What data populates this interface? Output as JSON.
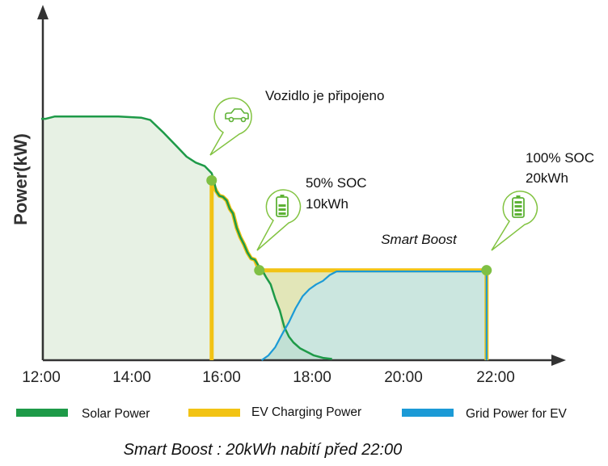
{
  "chart_data": {
    "type": "area",
    "ylabel": "Power(kW)",
    "x_ticks": [
      "12:00",
      "14:00",
      "16:00",
      "18:00",
      "20:00",
      "22:00"
    ],
    "x_range_hours": [
      12,
      23.3
    ],
    "y_range_kw": [
      0,
      12
    ],
    "grid": false,
    "legend_position": "bottom",
    "series": [
      {
        "name": "Solar Power",
        "color": "#1e9a48",
        "x_hours": [
          12,
          12.1,
          12.3,
          12.7,
          13.2,
          13.7,
          14.2,
          14.4,
          14.7,
          15.0,
          15.2,
          15.4,
          15.6,
          15.75,
          15.8,
          15.85,
          15.92,
          16.0,
          16.08,
          16.15,
          16.22,
          16.3,
          16.38,
          16.46,
          16.54,
          16.62,
          16.7,
          16.78,
          16.85,
          16.95,
          17.05,
          17.15,
          17.25,
          17.35,
          17.45,
          17.55,
          17.7,
          17.85,
          18.0,
          18.2,
          18.4
        ],
        "y_kw": [
          10.2,
          10.2,
          10.3,
          10.3,
          10.3,
          10.3,
          10.25,
          10.15,
          9.6,
          9.0,
          8.6,
          8.35,
          8.2,
          7.9,
          7.6,
          7.15,
          6.95,
          6.9,
          6.75,
          6.4,
          6.2,
          5.6,
          5.2,
          4.9,
          4.55,
          4.3,
          4.25,
          4.0,
          3.85,
          3.5,
          3.2,
          2.6,
          2.1,
          1.4,
          1.0,
          0.75,
          0.5,
          0.35,
          0.2,
          0.1,
          0.05
        ]
      },
      {
        "name": "EV Charging Power",
        "color": "#f2c314",
        "x_hours": [
          15.75,
          15.75,
          15.8,
          15.85,
          15.92,
          16.0,
          16.08,
          16.15,
          16.22,
          16.3,
          16.38,
          16.46,
          16.54,
          16.62,
          16.7,
          16.8,
          21.8,
          21.8
        ],
        "y_kw": [
          0,
          7.6,
          7.35,
          7.15,
          6.95,
          6.9,
          6.75,
          6.4,
          6.2,
          5.6,
          5.2,
          4.9,
          4.55,
          4.3,
          4.25,
          3.8,
          3.8,
          0
        ]
      },
      {
        "name": "Grid Power for EV",
        "color": "#1b9ad6",
        "x_hours": [
          16.85,
          17.0,
          17.15,
          17.3,
          17.45,
          17.6,
          17.75,
          17.9,
          18.05,
          18.2,
          18.35,
          18.5,
          21.8,
          21.8
        ],
        "y_kw": [
          0,
          0.2,
          0.55,
          1.1,
          1.6,
          2.2,
          2.7,
          3.0,
          3.2,
          3.35,
          3.6,
          3.75,
          3.75,
          0
        ]
      }
    ],
    "events": [
      {
        "x_hours": 15.75,
        "y_kw": 7.6,
        "icon": "car-icon",
        "label": "Vozidlo je připojeno"
      },
      {
        "x_hours": 16.8,
        "y_kw": 3.8,
        "icon": "battery-icon",
        "label_lines": [
          "50% SOC",
          "10kWh"
        ]
      },
      {
        "x_hours": 21.8,
        "y_kw": 3.8,
        "icon": "battery-icon",
        "label_lines": [
          "100% SOC",
          "20kWh"
        ]
      }
    ],
    "region_label": "Smart Boost",
    "caption": "Smart Boost : 20kWh nabití před 22:00"
  }
}
